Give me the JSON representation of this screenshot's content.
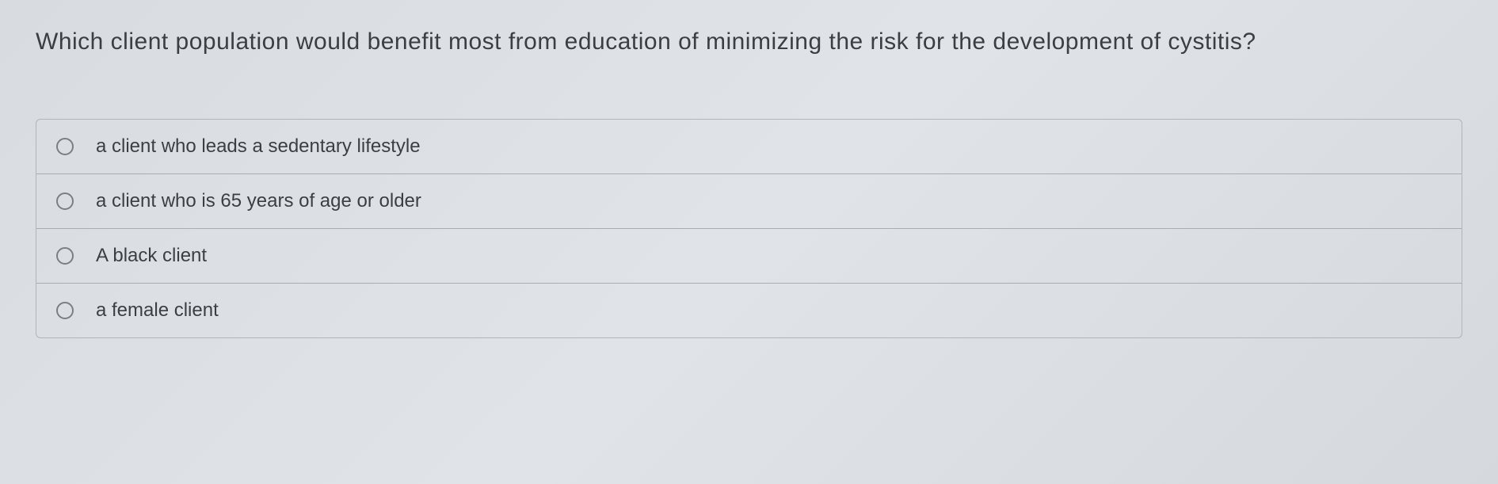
{
  "question": {
    "text": "Which client population would benefit most from education of minimizing the risk for the development of cystitis?",
    "text_color": "#3a3f44",
    "font_size": 30
  },
  "options": [
    {
      "label": "a client who leads a sedentary lifestyle",
      "selected": false
    },
    {
      "label": "a client who is 65 years of age or older",
      "selected": false
    },
    {
      "label": "A black client",
      "selected": false
    },
    {
      "label": "a female client",
      "selected": false
    }
  ],
  "styling": {
    "background_gradient_start": "#d8dce0",
    "background_gradient_end": "#d5d9dd",
    "border_color": "#b0b5ba",
    "divider_color": "#a8adb2",
    "radio_border_color": "#7a7f85",
    "option_text_color": "#3a3f44",
    "option_font_size": 24
  }
}
